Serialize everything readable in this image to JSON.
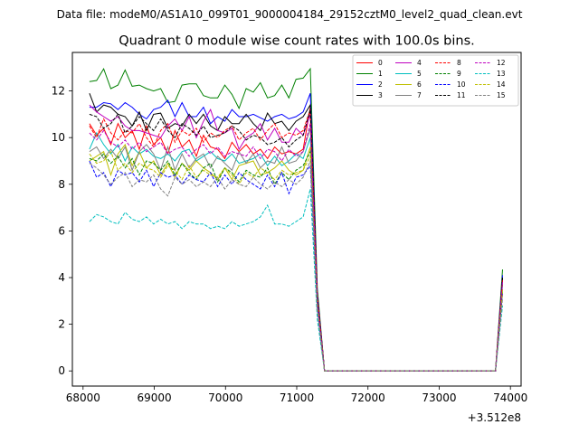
{
  "chart_data": {
    "type": "line",
    "suptitle": "Data file: modeM0/AS1A10_099T01_9000004184_29152cztM0_level2_quad_clean.evt",
    "title": "Quadrant 0 module wise count rates with 100.0s bins.",
    "xlabel": "",
    "ylabel": "",
    "x_offset_label": "+3.512e8",
    "xlim": [
      67850,
      74150
    ],
    "ylim": [
      -0.65,
      13.65
    ],
    "xticks": [
      68000,
      69000,
      70000,
      71000,
      72000,
      73000,
      74000
    ],
    "yticks": [
      0,
      2,
      4,
      6,
      8,
      10,
      12
    ],
    "grid": false,
    "legend": {
      "location": "top-right",
      "ncol": 4
    },
    "x": [
      68090,
      68190,
      68290,
      68390,
      68490,
      68590,
      68690,
      68790,
      68890,
      68990,
      69090,
      69190,
      69290,
      69390,
      69490,
      69590,
      69690,
      69790,
      69890,
      69990,
      70090,
      70190,
      70290,
      70390,
      70490,
      70590,
      70690,
      70790,
      70890,
      70990,
      71090,
      71190,
      71290,
      71390,
      73790,
      73890
    ],
    "series": [
      {
        "name": "0",
        "color": "#ff0000",
        "dash": "solid",
        "values": [
          10.6,
          10.1,
          10.4,
          9.7,
          10.6,
          10.0,
          10.3,
          9.5,
          10.5,
          9.7,
          10.0,
          9.3,
          10.3,
          9.6,
          9.9,
          9.2,
          10.1,
          9.6,
          9.5,
          9.1,
          9.8,
          9.4,
          9.7,
          9.3,
          9.5,
          9.1,
          9.6,
          9.3,
          9.4,
          9.3,
          9.5,
          11.3,
          3.2,
          0.0,
          0.0,
          3.8
        ]
      },
      {
        "name": "1",
        "color": "#008000",
        "dash": "solid",
        "values": [
          12.4,
          12.45,
          12.95,
          12.1,
          12.25,
          12.9,
          12.2,
          12.25,
          12.1,
          12.0,
          12.1,
          11.5,
          11.55,
          12.25,
          12.3,
          12.3,
          11.8,
          11.7,
          11.7,
          12.25,
          11.85,
          11.25,
          12.1,
          11.95,
          12.35,
          11.7,
          11.8,
          12.25,
          11.7,
          12.5,
          12.55,
          12.95,
          3.5,
          0.0,
          0.0,
          4.35
        ]
      },
      {
        "name": "2",
        "color": "#0000ff",
        "dash": "solid",
        "values": [
          11.3,
          11.3,
          11.5,
          11.45,
          11.2,
          11.5,
          11.3,
          11.0,
          10.8,
          11.2,
          11.3,
          11.6,
          10.9,
          11.5,
          10.9,
          10.9,
          11.3,
          10.6,
          10.9,
          10.7,
          11.2,
          10.9,
          10.9,
          11.0,
          10.85,
          10.7,
          10.9,
          11.0,
          10.8,
          10.9,
          11.1,
          11.9,
          3.3,
          0.0,
          0.0,
          4.1
        ]
      },
      {
        "name": "3",
        "color": "#000000",
        "dash": "solid",
        "values": [
          11.9,
          11.1,
          11.4,
          11.3,
          11.0,
          10.9,
          10.5,
          11.1,
          10.3,
          11.0,
          11.05,
          10.4,
          10.6,
          10.5,
          11.0,
          10.6,
          11.0,
          10.5,
          10.3,
          10.9,
          10.6,
          10.6,
          11.0,
          10.6,
          10.3,
          11.05,
          10.6,
          10.7,
          10.3,
          10.7,
          10.9,
          11.4,
          3.2,
          0.0,
          0.0,
          4.0
        ]
      },
      {
        "name": "4",
        "color": "#bf00bf",
        "dash": "solid",
        "values": [
          11.4,
          11.1,
          10.9,
          10.7,
          10.9,
          10.5,
          10.3,
          10.3,
          10.2,
          10.1,
          10.0,
          10.5,
          10.8,
          10.3,
          10.9,
          10.0,
          10.7,
          11.2,
          10.3,
          10.2,
          10.4,
          9.5,
          10.0,
          10.2,
          10.6,
          9.9,
          10.4,
          9.8,
          9.8,
          10.4,
          10.1,
          11.0,
          3.1,
          0.0,
          0.0,
          3.9
        ]
      },
      {
        "name": "5",
        "color": "#00bfbf",
        "dash": "solid",
        "values": [
          9.5,
          10.2,
          9.7,
          9.3,
          9.7,
          9.0,
          9.6,
          9.3,
          9.5,
          9.2,
          9.1,
          9.3,
          9.0,
          9.4,
          9.5,
          9.0,
          9.2,
          9.4,
          9.1,
          9.0,
          9.3,
          8.9,
          9.0,
          9.1,
          9.3,
          8.8,
          9.2,
          8.8,
          9.0,
          9.3,
          9.1,
          10.0,
          2.9,
          0.0,
          0.0,
          3.7
        ]
      },
      {
        "name": "6",
        "color": "#bfbf00",
        "dash": "solid",
        "values": [
          9.0,
          9.2,
          9.4,
          8.4,
          9.3,
          9.7,
          8.8,
          9.4,
          8.7,
          9.0,
          8.4,
          8.9,
          8.3,
          8.9,
          8.6,
          9.0,
          8.7,
          8.5,
          8.2,
          8.7,
          8.2,
          8.8,
          8.9,
          9.0,
          8.4,
          8.5,
          8.7,
          9.0,
          8.6,
          8.4,
          8.6,
          9.6,
          2.8,
          0.0,
          0.0,
          3.5
        ]
      },
      {
        "name": "7",
        "color": "#808080",
        "dash": "solid",
        "values": [
          9.4,
          9.6,
          9.1,
          9.5,
          9.1,
          9.6,
          8.6,
          9.4,
          9.7,
          9.3,
          8.6,
          9.6,
          8.6,
          9.3,
          8.7,
          9.1,
          9.3,
          8.7,
          9.2,
          8.9,
          8.6,
          9.4,
          8.9,
          9.3,
          8.7,
          9.0,
          8.9,
          9.6,
          8.9,
          9.0,
          9.4,
          10.4,
          3.0,
          0.0,
          0.0,
          3.8
        ]
      },
      {
        "name": "8",
        "color": "#ff0000",
        "dash": "dashed",
        "values": [
          10.5,
          10.0,
          10.8,
          10.2,
          9.9,
          10.3,
          10.2,
          10.6,
          10.0,
          9.6,
          10.3,
          10.6,
          9.8,
          10.3,
          10.1,
          10.4,
          9.8,
          10.2,
          10.0,
          10.3,
          10.5,
          9.9,
          10.2,
          10.4,
          9.9,
          10.3,
          10.6,
          10.0,
          10.2,
          10.1,
          10.3,
          11.2,
          3.2,
          0.0,
          0.0,
          3.9
        ]
      },
      {
        "name": "9",
        "color": "#008000",
        "dash": "dashed",
        "values": [
          9.1,
          9.0,
          9.3,
          8.9,
          9.2,
          8.7,
          9.1,
          8.4,
          9.0,
          8.9,
          8.6,
          9.0,
          8.4,
          8.9,
          8.5,
          8.2,
          8.7,
          8.9,
          8.1,
          8.7,
          8.5,
          8.1,
          8.6,
          8.4,
          8.3,
          8.7,
          8.0,
          8.5,
          8.2,
          8.6,
          8.8,
          9.4,
          2.7,
          0.0,
          0.0,
          3.4
        ]
      },
      {
        "name": "10",
        "color": "#0000ff",
        "dash": "dashed",
        "values": [
          9.0,
          8.3,
          8.5,
          7.9,
          8.6,
          8.4,
          8.5,
          8.1,
          8.6,
          7.9,
          8.5,
          8.3,
          8.4,
          8.0,
          8.4,
          8.2,
          8.1,
          8.5,
          7.9,
          8.4,
          8.0,
          8.5,
          8.2,
          8.0,
          7.8,
          8.4,
          7.9,
          8.5,
          7.6,
          8.3,
          8.4,
          8.8,
          2.6,
          0.0,
          0.0,
          3.3
        ]
      },
      {
        "name": "11",
        "color": "#000000",
        "dash": "dashed",
        "values": [
          11.0,
          10.9,
          10.4,
          10.6,
          11.0,
          10.2,
          10.5,
          10.9,
          10.6,
          10.3,
          10.8,
          10.3,
          10.0,
          10.6,
          10.4,
          10.1,
          10.5,
          10.0,
          10.1,
          10.2,
          10.5,
          10.3,
          9.9,
          10.1,
          10.0,
          9.7,
          9.8,
          10.0,
          9.6,
          9.9,
          10.1,
          11.2,
          3.2,
          0.0,
          0.0,
          4.0
        ]
      },
      {
        "name": "12",
        "color": "#bf00bf",
        "dash": "dashed",
        "values": [
          10.2,
          9.9,
          10.3,
          9.8,
          9.6,
          9.9,
          9.5,
          9.8,
          9.4,
          9.6,
          9.8,
          9.3,
          9.5,
          9.6,
          9.2,
          9.5,
          9.7,
          9.3,
          9.6,
          9.2,
          9.4,
          9.3,
          9.2,
          9.6,
          9.1,
          9.5,
          9.4,
          9.0,
          9.5,
          9.2,
          9.4,
          10.6,
          3.0,
          0.0,
          0.0,
          3.8
        ]
      },
      {
        "name": "13",
        "color": "#00bfbf",
        "dash": "dashed",
        "values": [
          6.4,
          6.7,
          6.6,
          6.4,
          6.3,
          6.8,
          6.5,
          6.4,
          6.6,
          6.3,
          6.5,
          6.3,
          6.4,
          6.1,
          6.4,
          6.3,
          6.3,
          6.1,
          6.2,
          6.1,
          6.4,
          6.2,
          6.3,
          6.4,
          6.6,
          7.1,
          6.3,
          6.3,
          6.2,
          6.4,
          6.6,
          7.8,
          2.2,
          0.0,
          0.0,
          2.8
        ]
      },
      {
        "name": "14",
        "color": "#bfbf00",
        "dash": "dashed",
        "values": [
          9.3,
          8.9,
          9.0,
          9.4,
          8.6,
          8.9,
          8.5,
          8.9,
          8.7,
          8.6,
          8.3,
          8.8,
          8.6,
          8.2,
          8.8,
          8.3,
          8.6,
          8.4,
          8.3,
          8.7,
          8.4,
          8.0,
          8.5,
          8.3,
          8.7,
          8.5,
          8.2,
          8.6,
          8.4,
          8.5,
          8.6,
          9.2,
          2.7,
          0.0,
          0.0,
          3.4
        ]
      },
      {
        "name": "15",
        "color": "#808080",
        "dash": "dashed",
        "values": [
          8.9,
          8.7,
          8.4,
          8.0,
          8.3,
          8.5,
          7.9,
          8.2,
          8.1,
          8.4,
          7.8,
          7.5,
          8.3,
          8.0,
          8.2,
          7.9,
          8.1,
          7.9,
          8.3,
          7.8,
          8.2,
          8.0,
          7.9,
          8.3,
          8.0,
          7.8,
          8.1,
          7.9,
          8.2,
          8.0,
          8.3,
          9.0,
          2.6,
          0.0,
          0.0,
          3.1
        ]
      }
    ]
  }
}
